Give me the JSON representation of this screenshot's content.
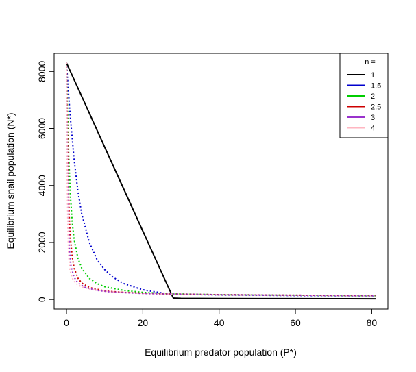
{
  "chart_data": {
    "type": "line",
    "title": "",
    "xlabel": "Equilibrium predator population (P*)",
    "ylabel": "Equilibrium snail population (N*)",
    "xlim": [
      -3.24,
      84.24
    ],
    "ylim": [
      -332,
      8632
    ],
    "x_ticks": [
      0,
      20,
      40,
      60,
      80
    ],
    "y_ticks": [
      0,
      2000,
      4000,
      6000,
      8000
    ],
    "grid": false,
    "legend": {
      "title": "n =",
      "position": "top-right"
    },
    "series": [
      {
        "name": "1",
        "color": "#000000",
        "style": "solid",
        "points": [
          [
            0,
            8300
          ],
          [
            5,
            6830
          ],
          [
            10,
            5350
          ],
          [
            15,
            3880
          ],
          [
            20,
            2400
          ],
          [
            25,
            930
          ],
          [
            27,
            340
          ],
          [
            28,
            50
          ],
          [
            30,
            40
          ],
          [
            40,
            35
          ],
          [
            50,
            32
          ],
          [
            60,
            30
          ],
          [
            70,
            28
          ],
          [
            81,
            27
          ]
        ]
      },
      {
        "name": "1.5",
        "color": "#0000CD",
        "style": "dotted",
        "points": [
          [
            0,
            8300
          ],
          [
            0.5,
            7300
          ],
          [
            1,
            6400
          ],
          [
            2,
            4900
          ],
          [
            3,
            3800
          ],
          [
            4,
            3000
          ],
          [
            6,
            2000
          ],
          [
            8,
            1400
          ],
          [
            10,
            1050
          ],
          [
            12,
            800
          ],
          [
            15,
            560
          ],
          [
            20,
            340
          ],
          [
            25,
            230
          ],
          [
            28,
            190
          ],
          [
            40,
            160
          ],
          [
            60,
            140
          ],
          [
            81,
            130
          ]
        ]
      },
      {
        "name": "2",
        "color": "#00CD00",
        "style": "dotted",
        "points": [
          [
            0,
            8300
          ],
          [
            0.3,
            6500
          ],
          [
            0.6,
            5000
          ],
          [
            1,
            3700
          ],
          [
            1.5,
            2700
          ],
          [
            2,
            2100
          ],
          [
            3,
            1450
          ],
          [
            4,
            1100
          ],
          [
            6,
            740
          ],
          [
            8,
            560
          ],
          [
            10,
            450
          ],
          [
            15,
            320
          ],
          [
            20,
            250
          ],
          [
            28,
            200
          ],
          [
            40,
            170
          ],
          [
            60,
            150
          ],
          [
            81,
            135
          ]
        ]
      },
      {
        "name": "2.5",
        "color": "#CD0000",
        "style": "dotted",
        "points": [
          [
            0,
            8300
          ],
          [
            0.2,
            6300
          ],
          [
            0.4,
            4500
          ],
          [
            0.7,
            3000
          ],
          [
            1,
            2200
          ],
          [
            1.5,
            1500
          ],
          [
            2,
            1100
          ],
          [
            3,
            750
          ],
          [
            4,
            580
          ],
          [
            6,
            420
          ],
          [
            10,
            300
          ],
          [
            15,
            250
          ],
          [
            20,
            220
          ],
          [
            28,
            190
          ],
          [
            40,
            170
          ],
          [
            60,
            150
          ],
          [
            81,
            140
          ]
        ]
      },
      {
        "name": "3",
        "color": "#9932CC",
        "style": "dotted",
        "points": [
          [
            0,
            8300
          ],
          [
            0.15,
            6000
          ],
          [
            0.3,
            4200
          ],
          [
            0.5,
            2800
          ],
          [
            0.8,
            1700
          ],
          [
            1.2,
            1150
          ],
          [
            2,
            780
          ],
          [
            3,
            580
          ],
          [
            5,
            420
          ],
          [
            8,
            320
          ],
          [
            12,
            260
          ],
          [
            20,
            210
          ],
          [
            28,
            190
          ],
          [
            40,
            170
          ],
          [
            60,
            150
          ],
          [
            81,
            140
          ]
        ]
      },
      {
        "name": "4",
        "color": "#FFB6C1",
        "style": "dotted",
        "points": [
          [
            0,
            8300
          ],
          [
            0.1,
            6000
          ],
          [
            0.2,
            4000
          ],
          [
            0.35,
            2600
          ],
          [
            0.55,
            1600
          ],
          [
            0.9,
            1050
          ],
          [
            1.5,
            750
          ],
          [
            2.5,
            560
          ],
          [
            4,
            440
          ],
          [
            7,
            340
          ],
          [
            12,
            270
          ],
          [
            20,
            220
          ],
          [
            28,
            190
          ],
          [
            40,
            170
          ],
          [
            60,
            150
          ],
          [
            81,
            140
          ]
        ]
      }
    ]
  }
}
